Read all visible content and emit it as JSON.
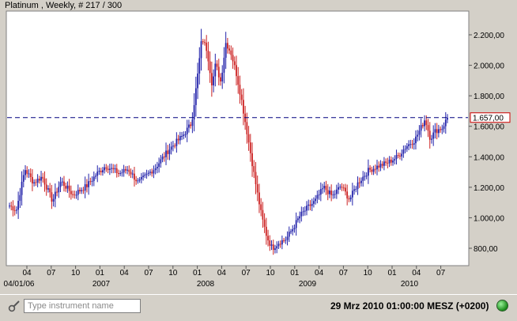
{
  "chart_data": {
    "type": "candlestick",
    "title": "Platinum , Weekly, # 217 / 300",
    "xlabel": "",
    "ylabel": "",
    "ylim": [
      720,
      2340
    ],
    "y_ticks": [
      "2.200,00",
      "2.000,00",
      "1.800,00",
      "1.600,00",
      "1.400,00",
      "1.200,00",
      "1.000,00",
      "800,00"
    ],
    "y_tick_values": [
      2200,
      2000,
      1800,
      1600,
      1400,
      1200,
      1000,
      800
    ],
    "x_month_ticks": [
      "04",
      "07",
      "10",
      "01",
      "04",
      "07",
      "10",
      "01",
      "04",
      "07",
      "10",
      "01",
      "04",
      "07",
      "10",
      "01",
      "04",
      "07"
    ],
    "x_year_labels": [
      "04/01/06",
      "2007",
      "2008",
      "2009",
      "2010"
    ],
    "current_price": 1657,
    "current_price_label": "1.657,00",
    "grid": false,
    "anchor_points": [
      [
        0,
        1080
      ],
      [
        8,
        1050
      ],
      [
        18,
        1320
      ],
      [
        28,
        1230
      ],
      [
        38,
        1270
      ],
      [
        50,
        1110
      ],
      [
        60,
        1240
      ],
      [
        74,
        1150
      ],
      [
        90,
        1210
      ],
      [
        102,
        1290
      ],
      [
        112,
        1340
      ],
      [
        128,
        1290
      ],
      [
        138,
        1320
      ],
      [
        150,
        1230
      ],
      [
        170,
        1330
      ],
      [
        186,
        1450
      ],
      [
        202,
        1540
      ],
      [
        212,
        1620
      ],
      [
        218,
        1880
      ],
      [
        224,
        2180
      ],
      [
        230,
        2100
      ],
      [
        236,
        1870
      ],
      [
        240,
        2010
      ],
      [
        246,
        1890
      ],
      [
        252,
        2150
      ],
      [
        258,
        2080
      ],
      [
        264,
        1950
      ],
      [
        270,
        1780
      ],
      [
        276,
        1580
      ],
      [
        282,
        1380
      ],
      [
        288,
        1180
      ],
      [
        294,
        1000
      ],
      [
        300,
        870
      ],
      [
        306,
        800
      ],
      [
        314,
        840
      ],
      [
        322,
        860
      ],
      [
        330,
        930
      ],
      [
        338,
        1010
      ],
      [
        346,
        1060
      ],
      [
        356,
        1110
      ],
      [
        366,
        1200
      ],
      [
        376,
        1140
      ],
      [
        386,
        1210
      ],
      [
        396,
        1120
      ],
      [
        406,
        1230
      ],
      [
        418,
        1310
      ],
      [
        430,
        1340
      ],
      [
        440,
        1360
      ],
      [
        452,
        1400
      ],
      [
        462,
        1470
      ],
      [
        472,
        1510
      ],
      [
        480,
        1600
      ],
      [
        484,
        1650
      ],
      [
        490,
        1520
      ],
      [
        496,
        1570
      ],
      [
        504,
        1590
      ],
      [
        510,
        1657
      ]
    ]
  },
  "search": {
    "placeholder": "Type instrument name",
    "value": ""
  },
  "status": {
    "timestamp": "29 Mrz 2010 01:00:00  MESZ (+0200)"
  },
  "colors": {
    "up": "#2222aa",
    "down": "#cc2222",
    "price_line": "#000080",
    "status_light": "#2aa02a"
  }
}
